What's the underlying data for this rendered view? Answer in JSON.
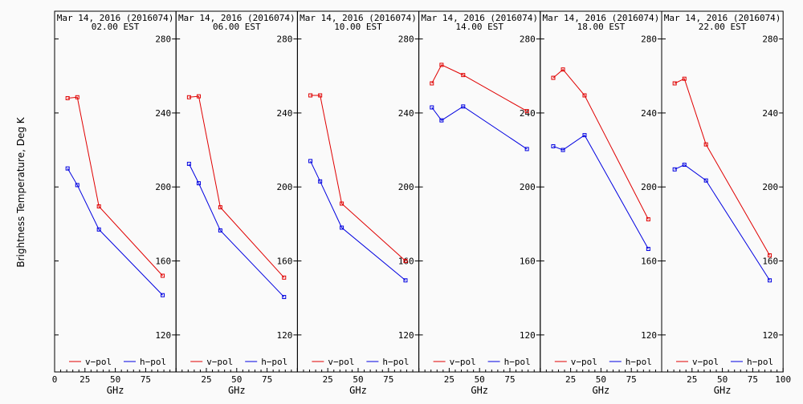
{
  "ylabel": "Brightness Temperature, Deg K",
  "xlabel": "GHz",
  "x_tick_labels": [
    "0",
    "25",
    "50",
    "75",
    "100"
  ],
  "y_tick_labels": [
    "120",
    "160",
    "200",
    "240",
    "280"
  ],
  "legend": {
    "v": "v−pol",
    "h": "h−pol"
  },
  "colors": {
    "v": "#e00000",
    "h": "#0000e0",
    "axis": "#000000",
    "background": "#fafafa"
  },
  "chart_data": {
    "type": "line",
    "xlim": [
      0,
      100
    ],
    "ylim": [
      100,
      295
    ],
    "x_ticks": [
      0,
      25,
      50,
      75,
      100
    ],
    "y_ticks": [
      120,
      160,
      200,
      240,
      280
    ],
    "x": [
      10.7,
      18.7,
      36.5,
      89.0
    ],
    "panels": [
      {
        "title": "Mar 14, 2016 (2016074)",
        "subtitle": "02.00 EST",
        "series": [
          {
            "name": "v−pol",
            "values": [
              248,
              248.5,
              189.5,
              152
            ]
          },
          {
            "name": "h−pol",
            "values": [
              210,
              201,
              177,
              141.5
            ]
          }
        ]
      },
      {
        "title": "Mar 14, 2016 (2016074)",
        "subtitle": "06.00 EST",
        "series": [
          {
            "name": "v−pol",
            "values": [
              248.5,
              249,
              189,
              151
            ]
          },
          {
            "name": "h−pol",
            "values": [
              212.5,
              202,
              176.5,
              140.5
            ]
          }
        ]
      },
      {
        "title": "Mar 14, 2016 (2016074)",
        "subtitle": "10.00 EST",
        "series": [
          {
            "name": "v−pol",
            "values": [
              249.5,
              249.5,
              191,
              160
            ]
          },
          {
            "name": "h−pol",
            "values": [
              214,
              203,
              178,
              149.5
            ]
          }
        ]
      },
      {
        "title": "Mar 14, 2016 (2016074)",
        "subtitle": "14.00 EST",
        "series": [
          {
            "name": "v−pol",
            "values": [
              256,
              266,
              260.5,
              241
            ]
          },
          {
            "name": "h−pol",
            "values": [
              243,
              236,
              243.5,
              220.5
            ]
          }
        ]
      },
      {
        "title": "Mar 14, 2016 (2016074)",
        "subtitle": "18.00 EST",
        "series": [
          {
            "name": "v−pol",
            "values": [
              259,
              263.5,
              249.5,
              182.5
            ]
          },
          {
            "name": "h−pol",
            "values": [
              222,
              220,
              228,
              166.5
            ]
          }
        ]
      },
      {
        "title": "Mar 14, 2016 (2016074)",
        "subtitle": "22.00 EST",
        "series": [
          {
            "name": "v−pol",
            "values": [
              256,
              258.5,
              223,
              163
            ]
          },
          {
            "name": "h−pol",
            "values": [
              209.5,
              212,
              203.5,
              149.5
            ]
          }
        ]
      }
    ]
  }
}
